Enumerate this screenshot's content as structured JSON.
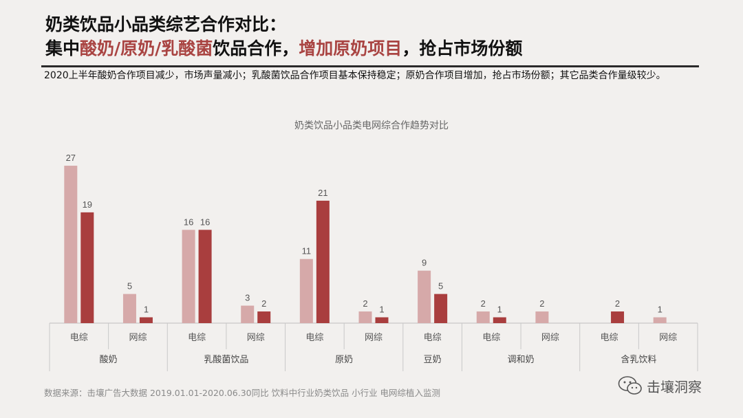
{
  "title": {
    "line1": "奶类饮品小品类综艺合作对比：",
    "line2_prefix": "集中",
    "line2_highlight1": "酸奶/原奶/乳酸菌",
    "line2_mid": "饮品合作，",
    "line2_highlight2": "增加原奶项目",
    "line2_suffix": "，抢占市场份额"
  },
  "summary": "2020上半年酸奶合作项目减少，市场声量减小；乳酸菌饮品合作项目基本保持稳定；原奶合作项目增加，抢占市场份额；其它品类合作量级较少。",
  "source": "数据来源：击壤广告大数据 2019.01.01-2020.06.30同比 饮料中行业奶类饮品 小行业 电网综植入监测",
  "brand": {
    "name": "击壤洞察",
    "icon": "wechat-icon"
  },
  "colors": {
    "light": "#d6a9a9",
    "dark": "#a93e3e",
    "highlight": "#a94442"
  },
  "chart_data": {
    "type": "bar",
    "title": "奶类饮品小品类电网综合作趋势对比",
    "groups": [
      {
        "name": "酸奶",
        "subs": [
          {
            "label": "电综",
            "values": [
              27,
              19
            ]
          },
          {
            "label": "网综",
            "values": [
              5,
              1
            ]
          }
        ]
      },
      {
        "name": "乳酸菌饮品",
        "subs": [
          {
            "label": "电综",
            "values": [
              16,
              16
            ]
          },
          {
            "label": "网综",
            "values": [
              3,
              2
            ]
          }
        ]
      },
      {
        "name": "原奶",
        "subs": [
          {
            "label": "电综",
            "values": [
              11,
              21
            ]
          },
          {
            "label": "网综",
            "values": [
              2,
              1
            ]
          }
        ]
      },
      {
        "name": "豆奶",
        "subs": [
          {
            "label": "电综",
            "values": [
              9,
              5
            ]
          }
        ]
      },
      {
        "name": "调和奶",
        "subs": [
          {
            "label": "电综",
            "values": [
              2,
              1
            ]
          },
          {
            "label": "网综",
            "values": [
              2,
              null
            ]
          }
        ]
      },
      {
        "name": "含乳饮料",
        "subs": [
          {
            "label": "电综",
            "values": [
              null,
              2
            ]
          },
          {
            "label": "网综",
            "values": [
              1,
              null
            ]
          }
        ]
      }
    ],
    "ylim": [
      0,
      27
    ]
  }
}
